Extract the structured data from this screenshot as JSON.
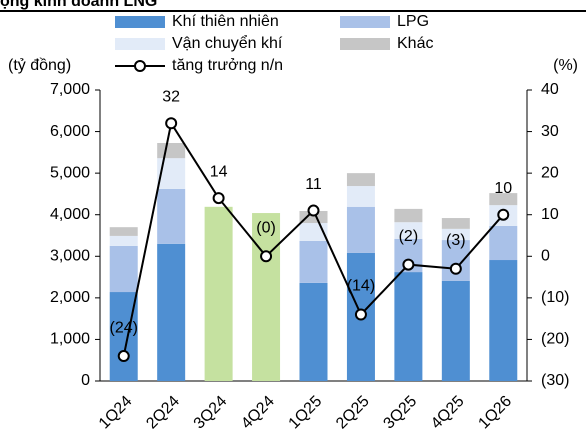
{
  "chart_data": {
    "type": "bar",
    "title": "ộng kinh doanh LNG",
    "y_label": "(tỷ đồng)",
    "y2_label": "(%)",
    "categories": [
      "1Q24",
      "2Q24",
      "3Q24",
      "4Q24",
      "1Q25",
      "2Q25",
      "3Q25",
      "4Q25",
      "1Q26"
    ],
    "series": [
      {
        "name": "Khí thiên nhiên",
        "color": "#4f8fd2",
        "values": [
          2140,
          3300,
          null,
          null,
          2360,
          3080,
          2620,
          2410,
          2910
        ]
      },
      {
        "name": "LPG",
        "color": "#a9c1e8",
        "values": [
          1110,
          1320,
          null,
          null,
          1010,
          1110,
          800,
          980,
          820
        ]
      },
      {
        "name": "Vận chuyển khí",
        "color": "#e2ebf8",
        "values": [
          240,
          740,
          null,
          null,
          430,
          500,
          400,
          270,
          500
        ]
      },
      {
        "name": "Khác",
        "color": "#c6c6c6",
        "values": [
          210,
          365,
          null,
          null,
          290,
          310,
          320,
          260,
          290
        ]
      },
      {
        "name": "tăng trưởng n/n",
        "type": "line",
        "axis": "y2",
        "color": "#000000",
        "values": [
          -24,
          32,
          14,
          0,
          11,
          -14,
          -2,
          -3,
          10
        ],
        "value_labels": [
          "(24)",
          "32",
          "14",
          "(0)",
          "11",
          "(14)",
          "(2)",
          "(3)",
          "10"
        ]
      }
    ],
    "highlight": {
      "color": "#c5e1a0",
      "values": [
        null,
        null,
        4190,
        4040,
        null,
        null,
        null,
        null,
        null
      ]
    },
    "negative_label_color": "#e00000",
    "ylim": [
      0,
      7000
    ],
    "yticks": [
      0,
      {
        "value": 1000,
        "label": "1,000"
      },
      {
        "value": 2000,
        "label": "2,000"
      },
      {
        "value": 3000,
        "label": "3,000"
      },
      {
        "value": 4000,
        "label": "4,000"
      },
      {
        "value": 5000,
        "label": "5,000"
      },
      {
        "value": 6000,
        "label": "6,000"
      },
      {
        "value": 7000,
        "label": "7,000"
      }
    ],
    "y2lim": [
      -30,
      40
    ],
    "y2ticks": [
      {
        "value": -30,
        "label": "(30)"
      },
      {
        "value": -20,
        "label": "(20)"
      },
      {
        "value": -10,
        "label": "(10)"
      },
      0,
      10,
      20,
      30,
      40
    ]
  }
}
